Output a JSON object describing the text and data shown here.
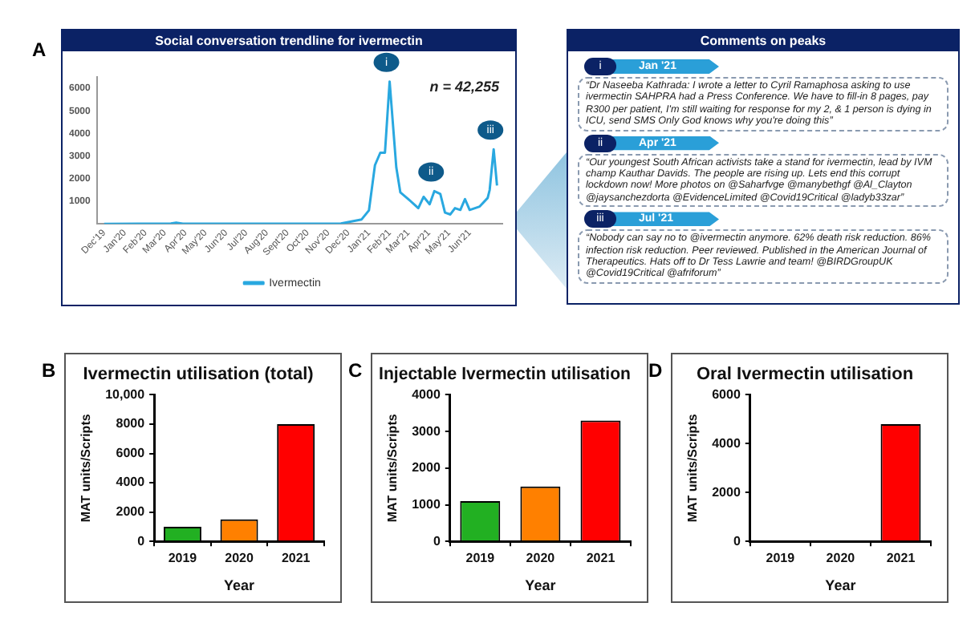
{
  "chart_data": [
    {
      "type": "line",
      "title": "Social conversation trendline for ivermectin",
      "legend": "bottom",
      "marker": "none",
      "series": [
        {
          "name": "Ivermectin",
          "color": "#29a8e0",
          "x": [
            "2019-12-01",
            "2020-03-10",
            "2020-03-18",
            "2020-03-28",
            "2020-11-20",
            "2020-12-21",
            "2021-01-01",
            "2021-01-10",
            "2021-01-18",
            "2021-01-25",
            "2021-02-01",
            "2021-02-11",
            "2021-02-17",
            "2021-03-01",
            "2021-03-16",
            "2021-03-24",
            "2021-04-02",
            "2021-04-09",
            "2021-04-18",
            "2021-04-25",
            "2021-05-03",
            "2021-05-10",
            "2021-05-18",
            "2021-05-25",
            "2021-06-01",
            "2021-06-16",
            "2021-06-28",
            "2021-07-01",
            "2021-07-07",
            "2021-07-12"
          ],
          "values": [
            0,
            20,
            60,
            10,
            20,
            200,
            600,
            2600,
            3150,
            3150,
            6300,
            2500,
            1400,
            1100,
            700,
            1200,
            870,
            1450,
            1330,
            500,
            420,
            700,
            620,
            1100,
            620,
            770,
            1150,
            1500,
            3300,
            1700
          ]
        }
      ],
      "xlim": [
        "2019-11-20",
        "2021-07-20"
      ],
      "xticks": [
        {
          "value": "2019-12-01",
          "label": "Dec'19"
        },
        {
          "value": "2020-01-01",
          "label": "Jan'20"
        },
        {
          "value": "2020-02-01",
          "label": "Feb'20"
        },
        {
          "value": "2020-03-01",
          "label": "Mar'20"
        },
        {
          "value": "2020-04-01",
          "label": "Apr'20"
        },
        {
          "value": "2020-05-01",
          "label": "May'20"
        },
        {
          "value": "2020-06-01",
          "label": "Jun'20"
        },
        {
          "value": "2020-07-01",
          "label": "Jul'20"
        },
        {
          "value": "2020-08-01",
          "label": "Aug'20"
        },
        {
          "value": "2020-09-01",
          "label": "Sept'20"
        },
        {
          "value": "2020-10-01",
          "label": "Oct'20"
        },
        {
          "value": "2020-11-01",
          "label": "Nov'20"
        },
        {
          "value": "2020-12-01",
          "label": "Dec'20"
        },
        {
          "value": "2021-01-01",
          "label": "Jan'21"
        },
        {
          "value": "2021-02-01",
          "label": "Feb'21"
        },
        {
          "value": "2021-03-01",
          "label": "Mar'21"
        },
        {
          "value": "2021-04-01",
          "label": "Apr'21"
        },
        {
          "value": "2021-05-01",
          "label": "May'21"
        },
        {
          "value": "2021-06-01",
          "label": "Jun'21"
        }
      ],
      "ylim": [
        0,
        6500
      ],
      "yticks": [
        1000,
        2000,
        3000,
        4000,
        5000,
        6000
      ],
      "annotations": [
        "A",
        "n = 42,255",
        {
          "text": "i",
          "x": "2021-02-01",
          "y": 6300
        },
        {
          "text": "ii",
          "x": "2021-04-09",
          "y": 1450
        },
        {
          "text": "iii",
          "x": "2021-07-07",
          "y": 3300
        }
      ]
    },
    {
      "type": "other",
      "title": "Comments on peaks",
      "annotations": [
        "i",
        "Jan '21",
        "“Dr Naseeba Kathrada: I wrote a letter to Cyril Ramaphosa asking to use ivermectin SAHPRA had a Press Conference. We have to fill-in 8 pages, pay R300 per patient, I'm still waiting for response for my 2, & 1 person is dying in ICU, send SMS Only God knows why you're doing this”",
        "ii",
        "Apr '21",
        "“Our youngest South African activists take a stand for ivermectin, lead by IVM champ Kauthar Davids. The people are rising up. Lets end this corrupt lockdown now! More photos on @Saharfvge @manybethgf @Al_Clayton @jaysanchezdorta @EvidenceLimited @Covid19Critical @ladyb33zar”",
        "iii",
        "Jul '21",
        "“Nobody can say no to @ivermectin anymore. 62% death risk reduction. 86% infection risk reduction. Peer reviewed. Published in the American Journal of Therapeutics. Hats off to Dr Tess Lawrie and team! @BIRDGroupUK @Covid19Critical @afriforum”"
      ]
    },
    {
      "type": "bar",
      "title": "Ivermectin utilisation (total)",
      "categories": [
        "2019",
        "2020",
        "2021"
      ],
      "values": [
        1000,
        1500,
        8000
      ],
      "colors": [
        "#22b022",
        "#ff8000",
        "#ff0000"
      ],
      "xlabel": "Year",
      "ylabel": "MAT units/Scripts",
      "ylim": [
        0,
        10000
      ],
      "yticks": [
        0,
        2000,
        4000,
        6000,
        8000,
        {
          "value": 10000,
          "label": "10,000"
        }
      ],
      "annotations": [
        "B"
      ]
    },
    {
      "type": "bar",
      "title": "Injectable Ivermectin utilisation",
      "categories": [
        "2019",
        "2020",
        "2021"
      ],
      "values": [
        1100,
        1500,
        3300
      ],
      "colors": [
        "#22b022",
        "#ff8000",
        "#ff0000"
      ],
      "xlabel": "Year",
      "ylabel": "MAT units/Scripts",
      "ylim": [
        0,
        4000
      ],
      "yticks": [
        0,
        1000,
        2000,
        3000,
        4000
      ],
      "annotations": [
        "C"
      ]
    },
    {
      "type": "bar",
      "title": "Oral Ivermectin utilisation",
      "categories": [
        "2019",
        "2020",
        "2021"
      ],
      "values": [
        0,
        0,
        4800
      ],
      "colors": [
        "#22b022",
        "#ff8000",
        "#ff0000"
      ],
      "xlabel": "Year",
      "ylabel": "MAT units/Scripts",
      "ylim": [
        0,
        6000
      ],
      "yticks": [
        0,
        2000,
        4000,
        6000
      ],
      "annotations": [
        "D"
      ]
    }
  ]
}
